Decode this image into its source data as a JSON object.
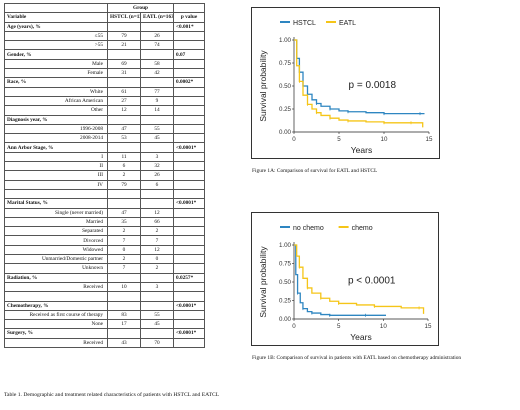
{
  "table": {
    "group_label": "Group",
    "headers": {
      "variable": "Variable",
      "hstcl": "HSTCL (n=122)",
      "eatl": "EATL (n=163)",
      "p_value": "p value"
    },
    "rows": [
      {
        "type": "section",
        "label": "Age (years), %",
        "p": "<0.001*"
      },
      {
        "type": "sub",
        "label": "≤55",
        "h": "79",
        "e": "26",
        "p": ""
      },
      {
        "type": "sub",
        "label": ">55",
        "h": "21",
        "e": "74",
        "p": ""
      },
      {
        "type": "section",
        "label": "Gender, %",
        "p": "0.07"
      },
      {
        "type": "sub",
        "label": "Male",
        "h": "69",
        "e": "58",
        "p": ""
      },
      {
        "type": "sub",
        "label": "Female",
        "h": "31",
        "e": "42",
        "p": ""
      },
      {
        "type": "section",
        "label": "Race, %",
        "p": "0.0002*"
      },
      {
        "type": "sub",
        "label": "White",
        "h": "61",
        "e": "77",
        "p": ""
      },
      {
        "type": "sub",
        "label": "African American",
        "h": "27",
        "e": "9",
        "p": ""
      },
      {
        "type": "sub",
        "label": "Other",
        "h": "12",
        "e": "14",
        "p": ""
      },
      {
        "type": "section",
        "label": "Diagnosis year, %",
        "p": ""
      },
      {
        "type": "sub",
        "label": "1996-2008",
        "h": "47",
        "e": "55",
        "p": ""
      },
      {
        "type": "sub",
        "label": "2008-2014",
        "h": "53",
        "e": "45",
        "p": ""
      },
      {
        "type": "section",
        "label": "Ann Arbor Stage, %",
        "p": "<0.0001*"
      },
      {
        "type": "sub",
        "label": "I",
        "h": "11",
        "e": "3",
        "p": ""
      },
      {
        "type": "sub",
        "label": "II",
        "h": "6",
        "e": "32",
        "p": ""
      },
      {
        "type": "sub",
        "label": "III",
        "h": "2",
        "e": "26",
        "p": ""
      },
      {
        "type": "sub",
        "label": "IV",
        "h": "79",
        "e": "6",
        "p": ""
      },
      {
        "type": "blank"
      },
      {
        "type": "section",
        "label": "Marital Status, %",
        "p": "<0.0001*"
      },
      {
        "type": "sub",
        "label": "Single (never married)",
        "h": "47",
        "e": "12",
        "p": ""
      },
      {
        "type": "sub",
        "label": "Married",
        "h": "35",
        "e": "66",
        "p": ""
      },
      {
        "type": "sub",
        "label": "Separated",
        "h": "2",
        "e": "2",
        "p": ""
      },
      {
        "type": "sub",
        "label": "Divorced",
        "h": "7",
        "e": "7",
        "p": ""
      },
      {
        "type": "sub",
        "label": "Widowed",
        "h": "0",
        "e": "12",
        "p": ""
      },
      {
        "type": "sub",
        "label": "Unmarried/Domestic partner",
        "h": "2",
        "e": "0",
        "p": ""
      },
      {
        "type": "sub",
        "label": "Unknown",
        "h": "7",
        "e": "2",
        "p": ""
      },
      {
        "type": "section",
        "label": "Radiation, %",
        "p": "0.0257*"
      },
      {
        "type": "sub",
        "label": "Received",
        "h": "10",
        "e": "3",
        "p": ""
      },
      {
        "type": "blank"
      },
      {
        "type": "section",
        "label": "Chemotherapy, %",
        "p": "<0.0001*"
      },
      {
        "type": "sub",
        "label": "Received as first course of therapy",
        "h": "83",
        "e": "55",
        "p": ""
      },
      {
        "type": "sub",
        "label": "None",
        "h": "17",
        "e": "45",
        "p": ""
      },
      {
        "type": "section",
        "label": "Surgery, %",
        "p": "<0.0001*"
      },
      {
        "type": "sub",
        "label": "Received",
        "h": "43",
        "e": "70",
        "p": ""
      }
    ],
    "caption": "Table 1. Demographic and treatment related characteristics of patients with HSTCL and EATCL"
  },
  "figures": {
    "fig1a": {
      "caption": "Figure 1A: Comparison of survival for EATL and HSTCL"
    },
    "fig1b": {
      "caption": "Figure 1B: Comparison of survival in patients with EATL based on chemotherapy administration"
    }
  },
  "chart_data": [
    {
      "type": "line",
      "xlabel": "Years",
      "ylabel": "Survival probability",
      "xlim": [
        0,
        15
      ],
      "ylim": [
        0,
        1
      ],
      "xticks": [
        "0",
        "5",
        "10",
        "15"
      ],
      "yticks": [
        "0.00",
        "0.25",
        "0.50",
        "0.75",
        "1.00"
      ],
      "annotation": "p = 0.0018",
      "legend_position": "top",
      "series": [
        {
          "name": "HSTCL",
          "color": "#2e86c1",
          "x": [
            0,
            0.3,
            0.6,
            1,
            1.5,
            2,
            2.5,
            3,
            4,
            5,
            6,
            8,
            10,
            12,
            14,
            14.5
          ],
          "y": [
            1,
            0.8,
            0.65,
            0.5,
            0.41,
            0.35,
            0.31,
            0.28,
            0.25,
            0.23,
            0.22,
            0.21,
            0.2,
            0.2,
            0.2,
            0.2
          ]
        },
        {
          "name": "EATL",
          "color": "#f5c518",
          "x": [
            0,
            0.3,
            0.6,
            1,
            1.5,
            2,
            2.5,
            3,
            4,
            5,
            6,
            8,
            10,
            12,
            13,
            14.3
          ],
          "y": [
            1,
            0.72,
            0.55,
            0.4,
            0.3,
            0.25,
            0.21,
            0.18,
            0.15,
            0.13,
            0.12,
            0.11,
            0.1,
            0.1,
            0.1,
            0.05
          ]
        }
      ]
    },
    {
      "type": "line",
      "xlabel": "Years",
      "ylabel": "Survival probability",
      "xlim": [
        0,
        15
      ],
      "ylim": [
        0,
        1
      ],
      "xticks": [
        "0",
        "5",
        "10",
        "15"
      ],
      "yticks": [
        "0.00",
        "0.25",
        "0.50",
        "0.75",
        "1.00"
      ],
      "annotation": "p < 0.0001",
      "legend_position": "top",
      "series": [
        {
          "name": "no chemo",
          "color": "#2e86c1",
          "x": [
            0,
            0.2,
            0.4,
            0.7,
            1,
            1.5,
            2,
            3,
            4,
            6,
            8,
            10.3
          ],
          "y": [
            1,
            0.6,
            0.35,
            0.22,
            0.14,
            0.1,
            0.08,
            0.06,
            0.05,
            0.05,
            0.05,
            0.05
          ]
        },
        {
          "name": "chemo",
          "color": "#f5c518",
          "x": [
            0,
            0.3,
            0.6,
            1,
            1.5,
            2,
            3,
            4,
            5,
            7,
            9,
            12,
            14,
            14.5
          ],
          "y": [
            1,
            0.85,
            0.7,
            0.55,
            0.42,
            0.35,
            0.28,
            0.24,
            0.21,
            0.19,
            0.17,
            0.15,
            0.15,
            0.07
          ]
        }
      ]
    }
  ]
}
